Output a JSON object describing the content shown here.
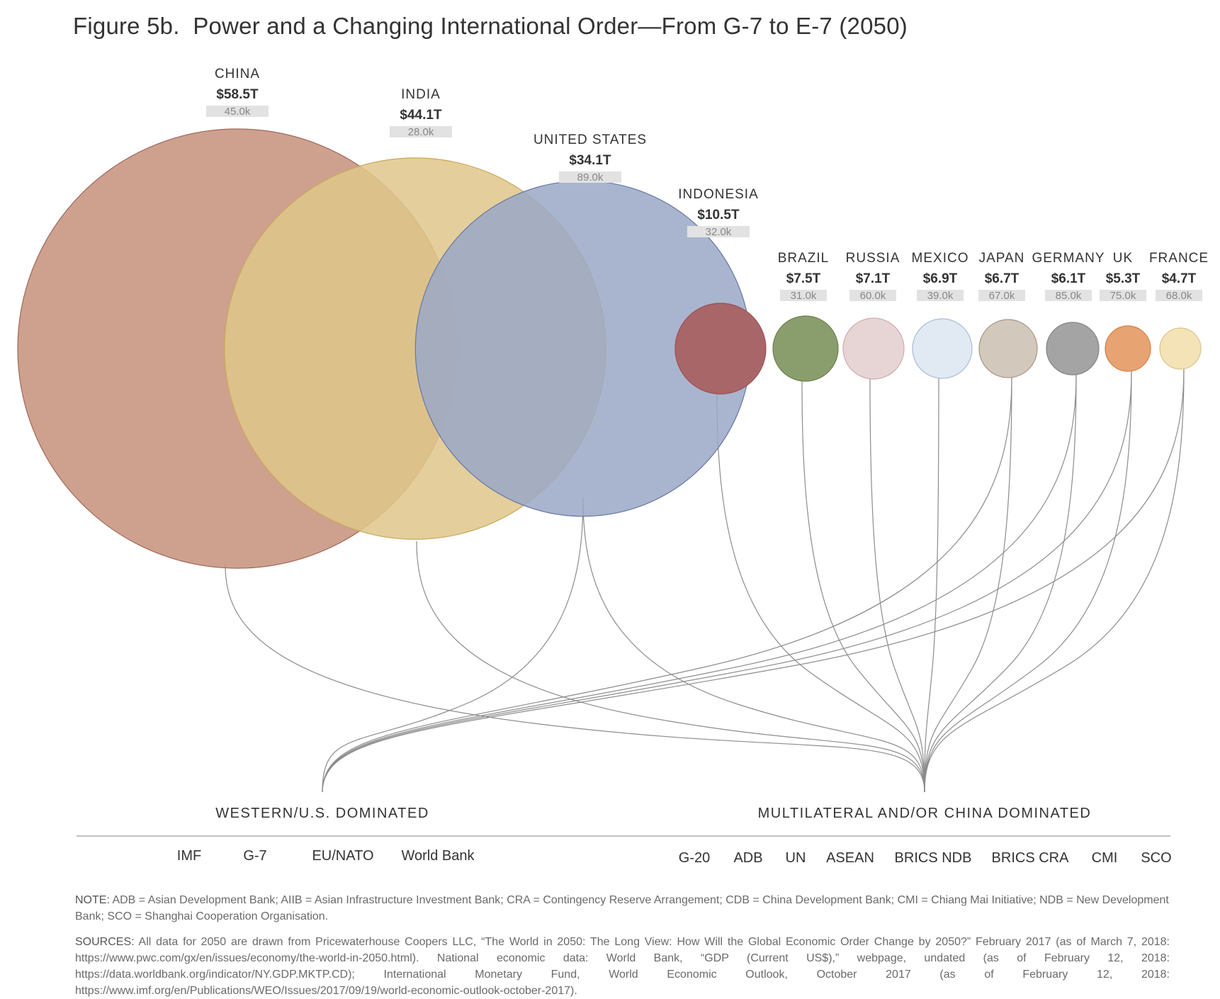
{
  "title": {
    "figure": "Figure 5b.",
    "text": "Power and a Changing International Order—From G-7 to E-7 (2050)"
  },
  "chart_data": {
    "type": "bubble",
    "series": [
      {
        "country": "CHINA",
        "gdp": "$58.5T",
        "gdp_value": 58.5,
        "per_capita": "45.0k",
        "color": "#c5917b"
      },
      {
        "country": "INDIA",
        "gdp": "$44.1T",
        "gdp_value": 44.1,
        "per_capita": "28.0k",
        "color": "#e0c68a"
      },
      {
        "country": "UNITED STATES",
        "gdp": "$34.1T",
        "gdp_value": 34.1,
        "per_capita": "89.0k",
        "color": "#9ba9c6"
      },
      {
        "country": "INDONESIA",
        "gdp": "$10.5T",
        "gdp_value": 10.5,
        "per_capita": "32.0k",
        "color": "#a86669"
      },
      {
        "country": "BRAZIL",
        "gdp": "$7.5T",
        "gdp_value": 7.5,
        "per_capita": "31.0k",
        "color": "#8a9e6d"
      },
      {
        "country": "RUSSIA",
        "gdp": "$7.1T",
        "gdp_value": 7.1,
        "per_capita": "60.0k",
        "color": "#e7d5d6"
      },
      {
        "country": "MEXICO",
        "gdp": "$6.9T",
        "gdp_value": 6.9,
        "per_capita": "39.0k",
        "color": "#e1e9f3"
      },
      {
        "country": "JAPAN",
        "gdp": "$6.7T",
        "gdp_value": 6.7,
        "per_capita": "67.0k",
        "color": "#d3c8bc"
      },
      {
        "country": "GERMANY",
        "gdp": "$6.1T",
        "gdp_value": 6.1,
        "per_capita": "85.0k",
        "color": "#a4a4a4"
      },
      {
        "country": "UK",
        "gdp": "$5.3T",
        "gdp_value": 5.3,
        "per_capita": "75.0k",
        "color": "#e8a372"
      },
      {
        "country": "FRANCE",
        "gdp": "$4.7T",
        "gdp_value": 4.7,
        "per_capita": "68.0k",
        "color": "#f3e3b6"
      }
    ],
    "groups": [
      {
        "name": "WESTERN/U.S. DOMINATED",
        "members": [
          "UNITED STATES",
          "JAPAN",
          "GERMANY",
          "UK",
          "FRANCE"
        ],
        "institutions": [
          "IMF",
          "G-7",
          "EU/NATO",
          "World Bank"
        ]
      },
      {
        "name": "MULTILATERAL AND/OR CHINA DOMINATED",
        "members": [
          "CHINA",
          "INDIA",
          "UNITED STATES",
          "INDONESIA",
          "BRAZIL",
          "RUSSIA",
          "MEXICO",
          "JAPAN",
          "GERMANY",
          "UK",
          "FRANCE"
        ],
        "institutions": [
          "G-20",
          "ADB",
          "UN",
          "ASEAN",
          "BRICS NDB",
          "BRICS CRA",
          "CMI",
          "SCO"
        ]
      }
    ]
  },
  "notes": {
    "note_label": "NOTE:",
    "note_text": "ADB = Asian Development Bank; AIIB = Asian Infrastructure Investment Bank; CRA = Contingency Reserve Arrangement; CDB = China Development Bank; CMI = Chiang Mai Initiative; NDB = New Development Bank; SCO = Shanghai Cooperation Organisation.",
    "sources_label": "SOURCES:",
    "sources_text": "All data for 2050 are drawn from Pricewaterhouse Coopers LLC, “The World in 2050: The Long View: How Will the Global Economic Order Change by 2050?” February 2017 (as of March 7, 2018: https://www.pwc.com/gx/en/issues/economy/the-world-in-2050.html). National economic data: World Bank, “GDP (Current US$),” webpage, undated (as of February 12, 2018: https://data.worldbank.org/indicator/NY.GDP.MKTP.CD); International Monetary Fund, World Economic Outlook, October 2017 (as of February 12, 2018: https://www.imf.org/en/Publications/WEO/Issues/2017/09/19/world-economic-outlook-october-2017)."
  }
}
